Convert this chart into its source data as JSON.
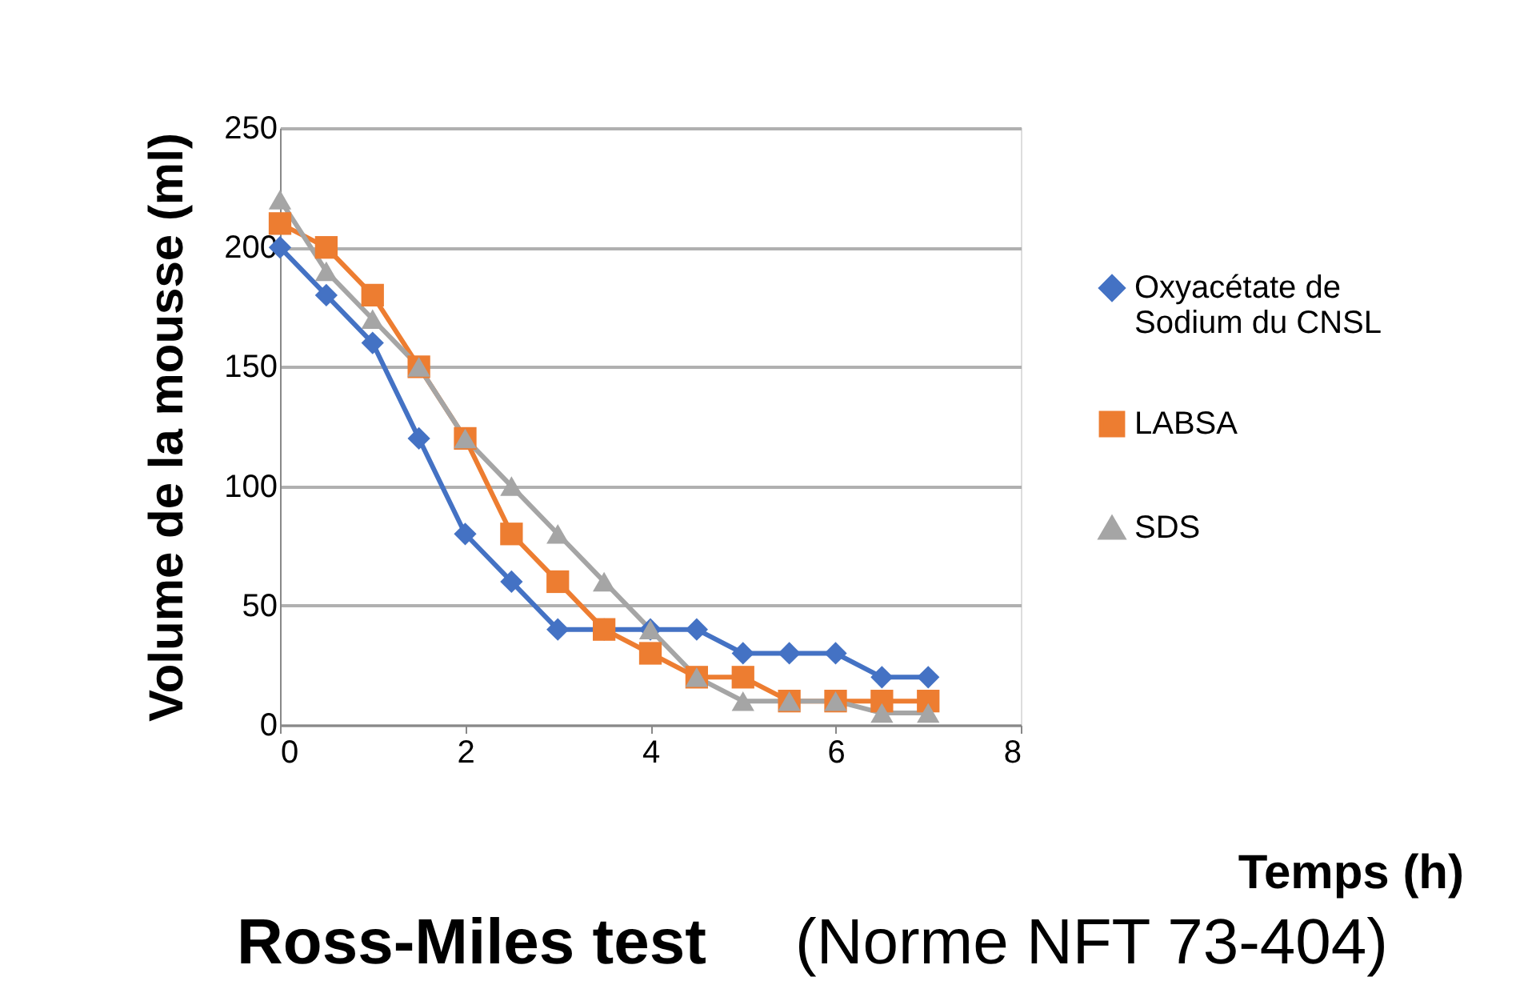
{
  "chart_data": {
    "type": "line",
    "title": "Ross-Miles test",
    "subtitle": "(Norme NFT 73-404)",
    "annotations": [
      "Temps (h)"
    ],
    "ylabel": "Volume de la mousse (ml)",
    "x": [
      0,
      0.5,
      1,
      1.5,
      2,
      2.5,
      3,
      3.5,
      4,
      4.5,
      5,
      5.5,
      6,
      6.5,
      7
    ],
    "series": [
      {
        "name": "Oxyacétate de Sodium du CNSL",
        "color": "#4472c4",
        "marker": "diamond",
        "values": [
          200,
          180,
          160,
          120,
          80,
          60,
          40,
          40,
          40,
          40,
          30,
          30,
          30,
          20,
          20
        ]
      },
      {
        "name": "LABSA",
        "color": "#ed7d31",
        "marker": "square",
        "values": [
          210,
          200,
          180,
          150,
          120,
          80,
          60,
          40,
          30,
          20,
          20,
          10,
          10,
          10,
          10
        ]
      },
      {
        "name": "SDS",
        "color": "#a5a5a5",
        "marker": "triangle",
        "values": [
          220,
          190,
          170,
          150,
          120,
          100,
          80,
          60,
          40,
          20,
          10,
          10,
          10,
          5,
          5
        ]
      }
    ],
    "xlim": [
      0,
      8
    ],
    "xticks": [
      0,
      2,
      4,
      6,
      8
    ],
    "ylim": [
      0,
      250
    ],
    "yticks": [
      0,
      50,
      100,
      150,
      200,
      250
    ],
    "grid": "y",
    "legend": "right",
    "line_style": "solid"
  }
}
